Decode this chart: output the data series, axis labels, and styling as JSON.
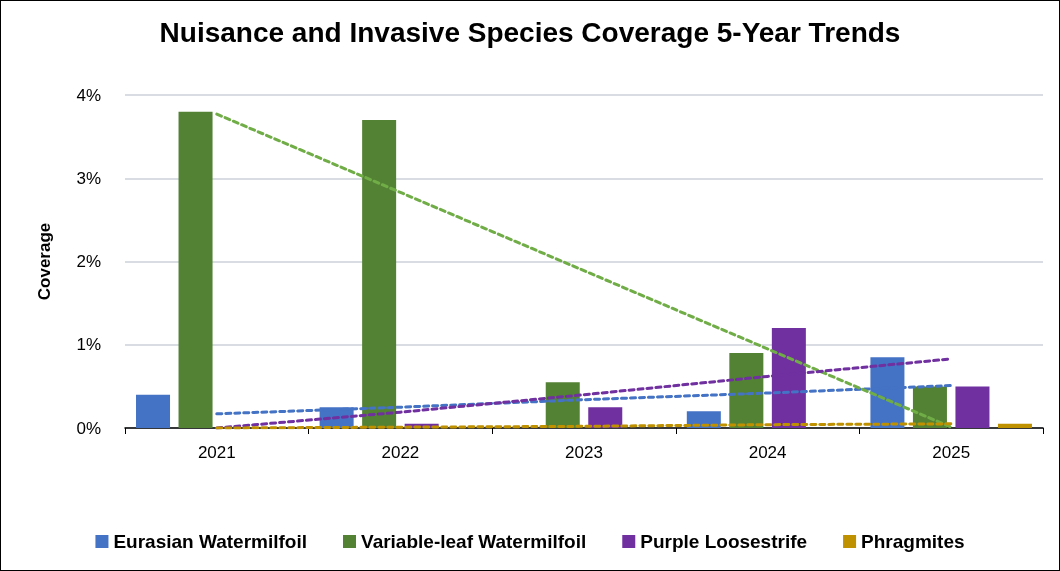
{
  "chart_data": {
    "type": "bar",
    "title": "Nuisance and Invasive Species Coverage 5-Year Trends",
    "ylabel": "Coverage",
    "categories": [
      "2021",
      "2022",
      "2023",
      "2024",
      "2025"
    ],
    "series": [
      {
        "name": "Eurasian Watermilfoil",
        "color": "#4472c4",
        "values": [
          0.4,
          0.25,
          0,
          0.2,
          0.85
        ]
      },
      {
        "name": "Variable-leaf Watermilfoil",
        "color": "#548235",
        "values": [
          3.8,
          3.7,
          0.55,
          0.9,
          0.5
        ]
      },
      {
        "name": "Purple Loosestrife",
        "color": "#7030a0",
        "values": [
          0,
          0.05,
          0.25,
          1.2,
          0.5
        ]
      },
      {
        "name": "Phragmites",
        "color": "#bf9000",
        "values": [
          0,
          0,
          0,
          0,
          0.05
        ]
      },
      {
        "type": "line",
        "line_style": "dashed",
        "color": "#4472c4",
        "values": [
          0.17,
          0.25,
          0.34,
          0.42,
          0.51
        ]
      },
      {
        "type": "line",
        "line_style": "dashed",
        "color": "#70ad47",
        "values": [
          3.77,
          2.83,
          1.89,
          0.95,
          0.01
        ]
      },
      {
        "type": "line",
        "line_style": "dashed",
        "color": "#7030a0",
        "values": [
          0,
          0.19,
          0.4,
          0.62,
          0.83
        ]
      },
      {
        "type": "line",
        "line_style": "dashed",
        "color": "#bf9000",
        "values": [
          0,
          0.01,
          0.02,
          0.04,
          0.05
        ]
      }
    ],
    "ylim": [
      0,
      4
    ],
    "yticks": [
      {
        "value": 0,
        "label": "0%"
      },
      {
        "value": 1,
        "label": "1%"
      },
      {
        "value": 2,
        "label": "2%"
      },
      {
        "value": 3,
        "label": "3%"
      },
      {
        "value": 4,
        "label": "4%"
      }
    ],
    "grid": "y",
    "legend": "bottom",
    "marker": "none"
  }
}
